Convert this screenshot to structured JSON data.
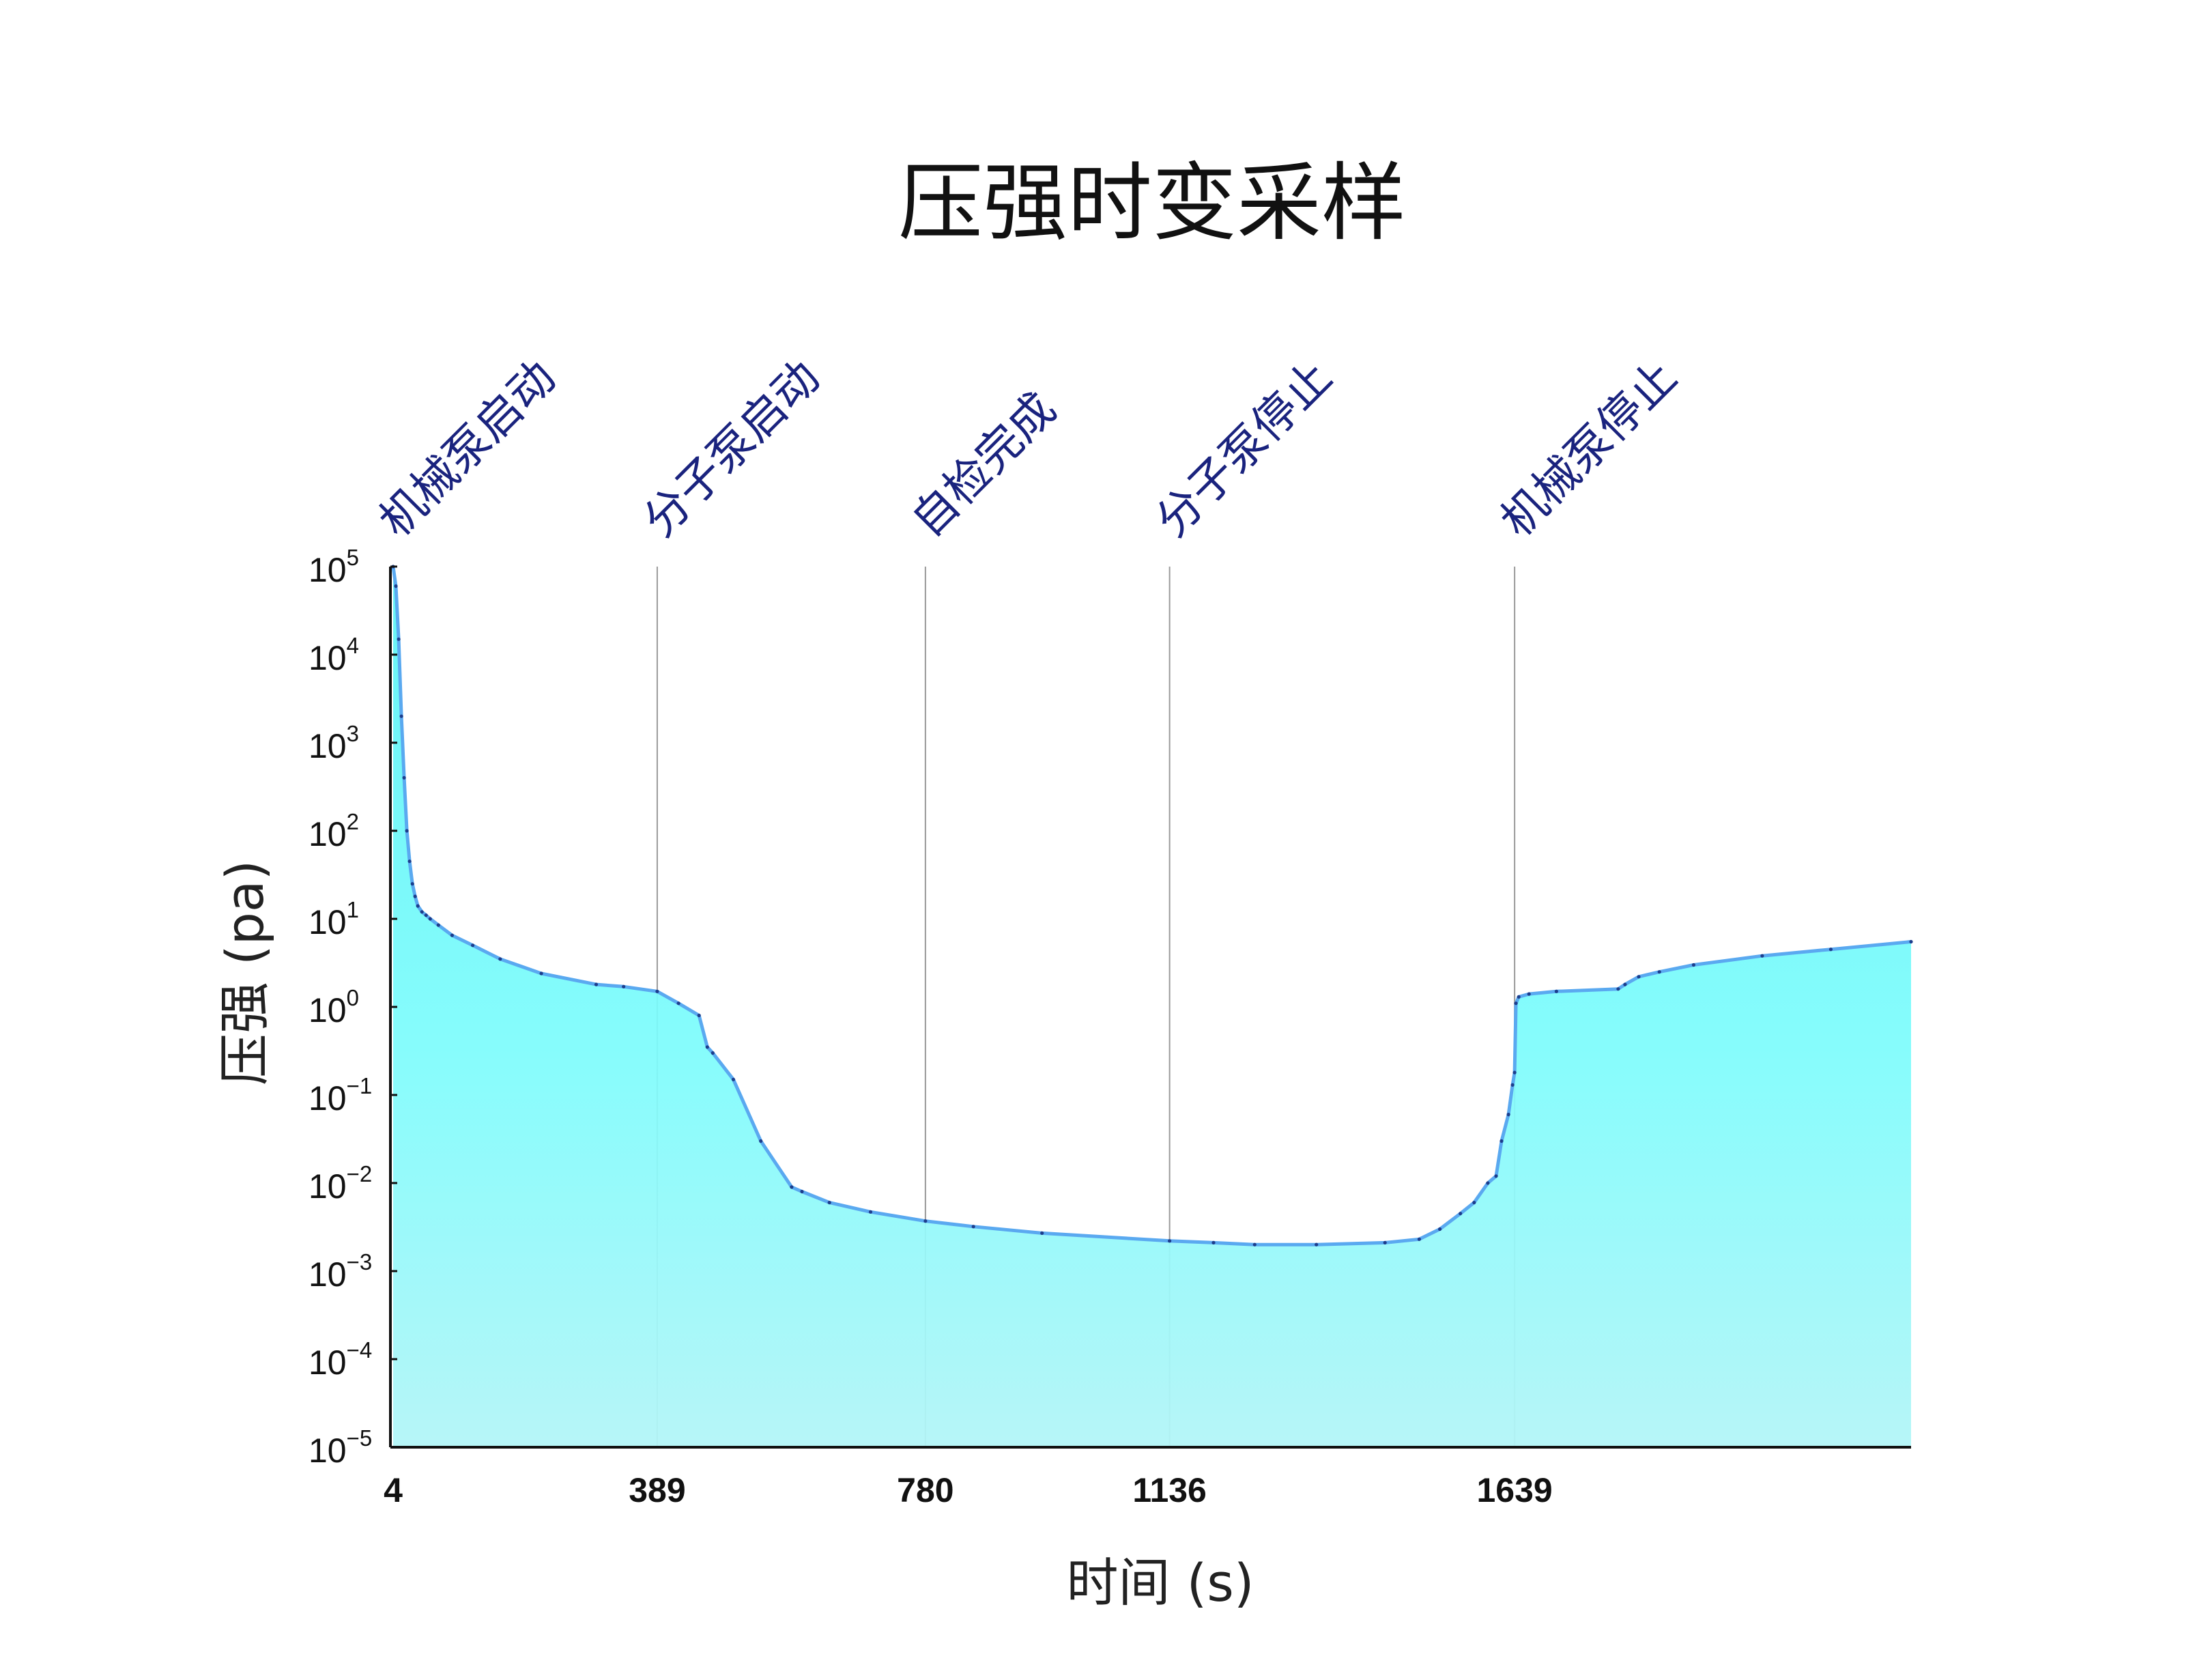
{
  "chart_data": {
    "type": "area",
    "title": "压强时变采样",
    "xlabel": "时间 (s)",
    "ylabel": "压强 (pa)",
    "yscale": "log",
    "ylim": [
      1e-05,
      100000
    ],
    "xlim": [
      0,
      2217
    ],
    "grid": false,
    "legend": "none",
    "yticks": [
      {
        "base": "10",
        "exp": "5"
      },
      {
        "base": "10",
        "exp": "4"
      },
      {
        "base": "10",
        "exp": "3"
      },
      {
        "base": "10",
        "exp": "2"
      },
      {
        "base": "10",
        "exp": "1"
      },
      {
        "base": "10",
        "exp": "0"
      },
      {
        "base": "10",
        "exp": "−1"
      },
      {
        "base": "10",
        "exp": "−2"
      },
      {
        "base": "10",
        "exp": "−3"
      },
      {
        "base": "10",
        "exp": "−4"
      },
      {
        "base": "10",
        "exp": "−5"
      }
    ],
    "xticks": [
      "4",
      "389",
      "780",
      "1136",
      "1639"
    ],
    "xtick_values": [
      4,
      389,
      780,
      1136,
      1639
    ],
    "annotations": [
      {
        "x": 4,
        "label": "机械泵启动"
      },
      {
        "x": 389,
        "label": "分子泵启动"
      },
      {
        "x": 780,
        "label": "自检完成"
      },
      {
        "x": 1136,
        "label": "分子泵停止"
      },
      {
        "x": 1639,
        "label": "机械泵停止"
      }
    ],
    "series": [
      {
        "x": [
          4,
          8,
          12,
          16,
          20,
          24,
          28,
          32,
          36,
          40,
          46,
          52,
          58,
          70,
          90,
          120,
          160,
          220,
          300,
          340,
          389,
          420,
          450,
          462,
          470,
          500,
          540,
          585,
          600,
          640,
          700,
          780,
          850,
          950,
          1136,
          1200,
          1260,
          1350,
          1450,
          1500,
          1530,
          1560,
          1580,
          1600,
          1612,
          1620,
          1630,
          1636,
          1639,
          1641,
          1645,
          1660,
          1700,
          1790,
          1800,
          1820,
          1850,
          1900,
          2000,
          2100,
          2217
        ],
        "y": [
          100000,
          60000,
          15000,
          2000,
          400,
          100,
          45,
          25,
          18,
          14,
          12,
          11,
          10,
          8.5,
          6.5,
          5,
          3.5,
          2.4,
          1.8,
          1.7,
          1.5,
          1.1,
          0.8,
          0.35,
          0.3,
          0.15,
          0.03,
          0.009,
          0.008,
          0.006,
          0.0047,
          0.0037,
          0.0032,
          0.0027,
          0.0022,
          0.0021,
          0.002,
          0.002,
          0.0021,
          0.0023,
          0.003,
          0.0045,
          0.006,
          0.01,
          0.012,
          0.03,
          0.06,
          0.13,
          0.18,
          1.1,
          1.3,
          1.4,
          1.5,
          1.6,
          1.8,
          2.2,
          2.5,
          3,
          3.8,
          4.5,
          5.5
        ],
        "color": "#5aa9f0",
        "fill_top": "#5ef2f5",
        "fill_bottom": "#a8f4f7"
      }
    ]
  }
}
